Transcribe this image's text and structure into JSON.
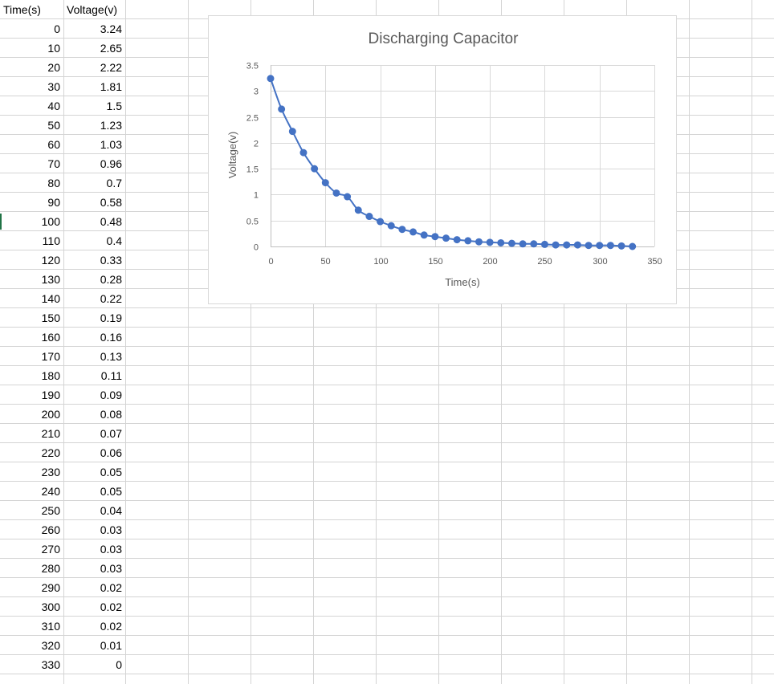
{
  "sheet": {
    "headers": [
      "Time(s)",
      "Voltage(v)"
    ],
    "rows": [
      [
        "0",
        "3.24"
      ],
      [
        "10",
        "2.65"
      ],
      [
        "20",
        "2.22"
      ],
      [
        "30",
        "1.81"
      ],
      [
        "40",
        "1.5"
      ],
      [
        "50",
        "1.23"
      ],
      [
        "60",
        "1.03"
      ],
      [
        "70",
        "0.96"
      ],
      [
        "80",
        "0.7"
      ],
      [
        "90",
        "0.58"
      ],
      [
        "100",
        "0.48"
      ],
      [
        "110",
        "0.4"
      ],
      [
        "120",
        "0.33"
      ],
      [
        "130",
        "0.28"
      ],
      [
        "140",
        "0.22"
      ],
      [
        "150",
        "0.19"
      ],
      [
        "160",
        "0.16"
      ],
      [
        "170",
        "0.13"
      ],
      [
        "180",
        "0.11"
      ],
      [
        "190",
        "0.09"
      ],
      [
        "200",
        "0.08"
      ],
      [
        "210",
        "0.07"
      ],
      [
        "220",
        "0.06"
      ],
      [
        "230",
        "0.05"
      ],
      [
        "240",
        "0.05"
      ],
      [
        "250",
        "0.04"
      ],
      [
        "260",
        "0.03"
      ],
      [
        "270",
        "0.03"
      ],
      [
        "280",
        "0.03"
      ],
      [
        "290",
        "0.02"
      ],
      [
        "300",
        "0.02"
      ],
      [
        "310",
        "0.02"
      ],
      [
        "320",
        "0.01"
      ],
      [
        "330",
        "0"
      ]
    ],
    "selected_row_value": "100"
  },
  "chart_data": {
    "type": "scatter",
    "title": "Discharging Capacitor",
    "xlabel": "Time(s)",
    "ylabel": "Voltage(v)",
    "xlim": [
      0,
      350
    ],
    "ylim": [
      0,
      3.5
    ],
    "xticks": [
      0,
      50,
      100,
      150,
      200,
      250,
      300,
      350
    ],
    "yticks": [
      0,
      0.5,
      1,
      1.5,
      2,
      2.5,
      3,
      3.5
    ],
    "grid": true,
    "line": "smooth line with markers",
    "color": "#4472c4",
    "x": [
      0,
      10,
      20,
      30,
      40,
      50,
      60,
      70,
      80,
      90,
      100,
      110,
      120,
      130,
      140,
      150,
      160,
      170,
      180,
      190,
      200,
      210,
      220,
      230,
      240,
      250,
      260,
      270,
      280,
      290,
      300,
      310,
      320,
      330
    ],
    "y": [
      3.24,
      2.65,
      2.22,
      1.81,
      1.5,
      1.23,
      1.03,
      0.96,
      0.7,
      0.58,
      0.48,
      0.4,
      0.33,
      0.28,
      0.22,
      0.19,
      0.16,
      0.13,
      0.11,
      0.09,
      0.08,
      0.07,
      0.06,
      0.05,
      0.05,
      0.04,
      0.03,
      0.03,
      0.03,
      0.02,
      0.02,
      0.02,
      0.01,
      0
    ]
  }
}
